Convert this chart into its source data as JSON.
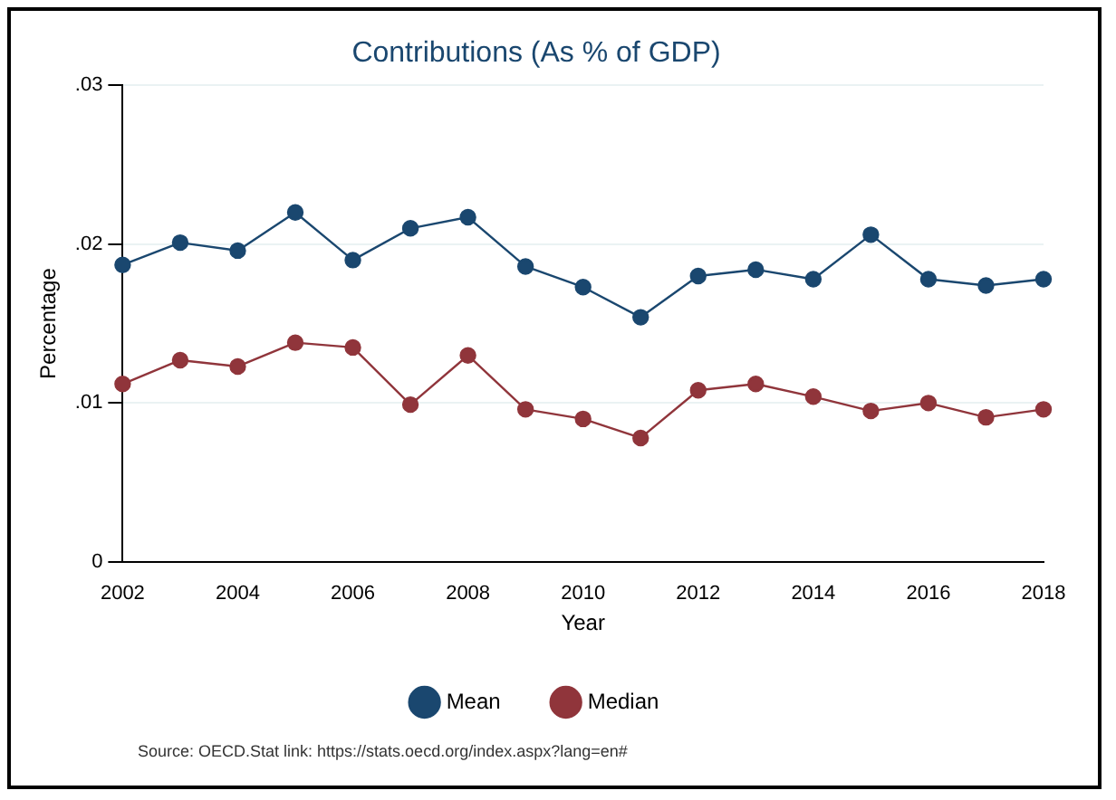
{
  "chart_data": {
    "type": "line",
    "title": "Contributions (As % of GDP)",
    "xlabel": "Year",
    "ylabel": "Percentage",
    "x": [
      2002,
      2003,
      2004,
      2005,
      2006,
      2007,
      2008,
      2009,
      2010,
      2011,
      2012,
      2013,
      2014,
      2015,
      2016,
      2017,
      2018
    ],
    "series": [
      {
        "name": "Mean",
        "color": "#1a476f",
        "values": [
          0.0187,
          0.0201,
          0.0196,
          0.022,
          0.019,
          0.021,
          0.0217,
          0.0186,
          0.0173,
          0.0154,
          0.018,
          0.0184,
          0.0178,
          0.0206,
          0.0178,
          0.0174,
          0.0178
        ]
      },
      {
        "name": "Median",
        "color": "#90353b",
        "values": [
          0.0112,
          0.0127,
          0.0123,
          0.0138,
          0.0135,
          0.0099,
          0.013,
          0.0096,
          0.009,
          0.0078,
          0.0108,
          0.0112,
          0.0104,
          0.0095,
          0.01,
          0.0091,
          0.0096
        ]
      }
    ],
    "xlim": [
      2002,
      2018
    ],
    "xticks": [
      2002,
      2004,
      2006,
      2008,
      2010,
      2012,
      2014,
      2016,
      2018
    ],
    "ylim": [
      0,
      0.03
    ],
    "yticks": [
      0,
      {
        "value": 0.01,
        "label": ".01"
      },
      {
        "value": 0.02,
        "label": ".02"
      },
      {
        "value": 0.03,
        "label": ".03"
      }
    ],
    "grid": "y",
    "legend": "bottom",
    "marker": "circle",
    "line_style": "solid",
    "annotations": [
      "Source: OECD.Stat link: https://stats.oecd.org/index.aspx?lang=en#"
    ]
  }
}
